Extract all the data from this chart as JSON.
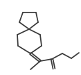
{
  "background": "#ffffff",
  "line_color": "#3a3a3a",
  "line_width": 1.25,
  "figsize": [
    1.17,
    1.08
  ],
  "dpi": 100,
  "xlim": [
    0,
    117
  ],
  "ylim": [
    0,
    108
  ]
}
